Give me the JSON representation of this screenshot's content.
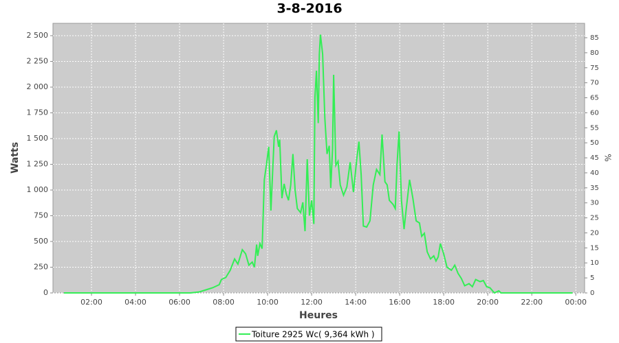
{
  "chart_data": {
    "type": "line",
    "title": "3-8-2016",
    "x_label": "Heures",
    "y_label": "Watts",
    "y2_label": "%",
    "xlim": [
      0.25,
      24.4
    ],
    "ylim": [
      0,
      2620
    ],
    "y2lim": [
      0,
      89.8
    ],
    "xticks": [
      {
        "value": 2,
        "label": "02:00"
      },
      {
        "value": 4,
        "label": "04:00"
      },
      {
        "value": 6,
        "label": "06:00"
      },
      {
        "value": 8,
        "label": "08:00"
      },
      {
        "value": 10,
        "label": "10:00"
      },
      {
        "value": 12,
        "label": "12:00"
      },
      {
        "value": 14,
        "label": "14:00"
      },
      {
        "value": 16,
        "label": "16:00"
      },
      {
        "value": 18,
        "label": "18:00"
      },
      {
        "value": 20,
        "label": "20:00"
      },
      {
        "value": 22,
        "label": "22:00"
      },
      {
        "value": 24,
        "label": "00:00"
      }
    ],
    "yticks": [
      0,
      250,
      500,
      750,
      {
        "value": 1000,
        "label": "1 000"
      },
      {
        "value": 1250,
        "label": "1 250"
      },
      {
        "value": 1500,
        "label": "1 500"
      },
      {
        "value": 1750,
        "label": "1 750"
      },
      {
        "value": 2000,
        "label": "2 000"
      },
      {
        "value": 2250,
        "label": "2 250"
      },
      {
        "value": 2500,
        "label": "2 500"
      }
    ],
    "y2ticks": [
      0,
      5,
      10,
      15,
      20,
      25,
      30,
      35,
      40,
      45,
      50,
      55,
      60,
      65,
      70,
      75,
      80,
      85
    ],
    "grid": true,
    "x": [
      0.75,
      6.5,
      6.9,
      7.2,
      7.5,
      7.8,
      7.9,
      8.1,
      8.3,
      8.5,
      8.65,
      8.85,
      9.0,
      9.15,
      9.3,
      9.4,
      9.5,
      9.55,
      9.65,
      9.75,
      9.85,
      9.95,
      10.05,
      10.15,
      10.3,
      10.4,
      10.5,
      10.55,
      10.65,
      10.75,
      10.85,
      10.95,
      11.05,
      11.15,
      11.25,
      11.35,
      11.5,
      11.6,
      11.7,
      11.8,
      11.9,
      12.0,
      12.1,
      12.15,
      12.22,
      12.3,
      12.35,
      12.4,
      12.5,
      12.6,
      12.7,
      12.8,
      12.87,
      12.95,
      13.0,
      13.1,
      13.2,
      13.3,
      13.45,
      13.6,
      13.75,
      13.9,
      14.05,
      14.15,
      14.25,
      14.35,
      14.5,
      14.65,
      14.8,
      14.95,
      15.1,
      15.2,
      15.33,
      15.43,
      15.53,
      15.7,
      15.8,
      15.88,
      15.97,
      16.08,
      16.2,
      16.3,
      16.45,
      16.6,
      16.75,
      16.9,
      17.0,
      17.12,
      17.25,
      17.4,
      17.55,
      17.65,
      17.75,
      17.85,
      18.0,
      18.15,
      18.35,
      18.5,
      18.65,
      18.8,
      18.95,
      19.15,
      19.3,
      19.45,
      19.65,
      19.8,
      19.95,
      20.1,
      20.3,
      20.5,
      20.6,
      23.85
    ],
    "series": [
      {
        "name": "Toiture 2925 Wc( 9,364 kWh )",
        "color": "#33ee55",
        "axis": "y",
        "values": [
          0,
          0,
          10,
          30,
          50,
          80,
          130,
          150,
          220,
          330,
          280,
          420,
          380,
          270,
          300,
          250,
          470,
          360,
          480,
          430,
          1100,
          1250,
          1420,
          800,
          1520,
          1580,
          1420,
          1490,
          920,
          1060,
          960,
          900,
          1050,
          1350,
          1000,
          820,
          780,
          880,
          600,
          1300,
          750,
          900,
          670,
          1900,
          2160,
          1650,
          2320,
          2510,
          2320,
          1700,
          1350,
          1430,
          1020,
          1400,
          2120,
          1240,
          1280,
          1050,
          950,
          1030,
          1270,
          980,
          1300,
          1470,
          1150,
          650,
          640,
          700,
          1050,
          1200,
          1150,
          1540,
          1080,
          1050,
          900,
          860,
          820,
          1250,
          1570,
          900,
          620,
          820,
          1100,
          920,
          700,
          680,
          550,
          580,
          400,
          330,
          360,
          310,
          350,
          480,
          380,
          250,
          220,
          270,
          190,
          140,
          70,
          90,
          60,
          130,
          110,
          120,
          60,
          50,
          0,
          20,
          0,
          0
        ]
      }
    ]
  }
}
